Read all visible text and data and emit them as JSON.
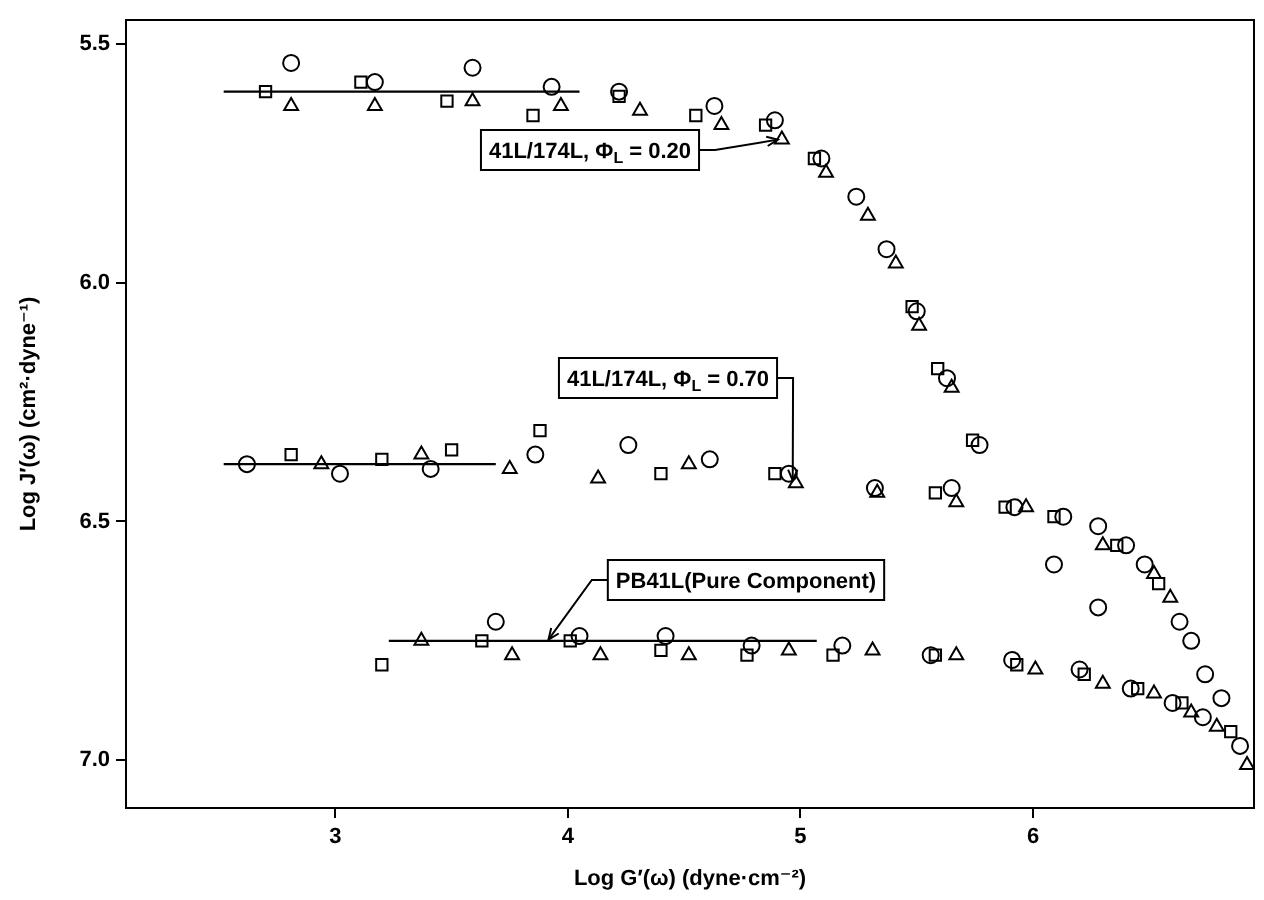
{
  "chart_data": {
    "type": "scatter",
    "xlabel": "Log G′(ω) (dyne·cm⁻²)",
    "ylabel": "Log J′(ω) (cm²·dyne⁻¹)",
    "xlim": [
      2.1,
      6.95
    ],
    "ylim": [
      7.1,
      5.45
    ],
    "xticks": [
      3,
      4,
      5,
      6
    ],
    "yticks": [
      5.5,
      {
        "value": 6,
        "label": "6.0"
      },
      6.5,
      {
        "value": 7,
        "label": "7.0"
      }
    ],
    "grid": false,
    "legend": false,
    "series": [
      {
        "type": "scatter",
        "marker": "circle",
        "color": "#000000",
        "x": [
          2.81,
          3.17,
          3.59,
          3.93,
          4.22,
          4.63,
          4.89,
          5.09,
          5.24,
          5.37,
          5.5,
          5.63,
          5.77,
          2.62,
          3.02,
          3.41,
          3.86,
          4.26,
          4.61,
          4.95,
          5.32,
          5.65,
          5.92,
          6.13,
          6.09,
          6.28,
          6.28,
          6.4,
          6.48,
          6.63,
          6.68,
          6.74,
          6.81,
          3.69,
          4.05,
          4.42,
          4.79,
          5.18,
          5.56,
          5.91,
          6.2,
          6.42,
          6.6,
          6.73,
          6.89
        ],
        "values": [
          5.54,
          5.58,
          5.55,
          5.59,
          5.6,
          5.63,
          5.66,
          5.74,
          5.82,
          5.93,
          6.06,
          6.2,
          6.34,
          6.38,
          6.4,
          6.39,
          6.36,
          6.34,
          6.37,
          6.4,
          6.43,
          6.43,
          6.47,
          6.49,
          6.59,
          6.51,
          6.68,
          6.55,
          6.59,
          6.71,
          6.75,
          6.82,
          6.87,
          6.71,
          6.74,
          6.74,
          6.76,
          6.76,
          6.78,
          6.79,
          6.81,
          6.85,
          6.88,
          6.91,
          6.97
        ]
      },
      {
        "type": "scatter",
        "marker": "square",
        "color": "#000000",
        "x": [
          2.7,
          3.11,
          3.48,
          3.85,
          4.22,
          4.55,
          4.85,
          5.06,
          5.48,
          5.59,
          5.74,
          2.81,
          3.2,
          3.5,
          3.88,
          4.4,
          4.89,
          5.58,
          5.88,
          6.09,
          6.36,
          6.54,
          3.2,
          3.63,
          4.01,
          4.4,
          4.77,
          5.14,
          5.58,
          5.93,
          6.22,
          6.45,
          6.64,
          6.85
        ],
        "values": [
          5.6,
          5.58,
          5.62,
          5.65,
          5.61,
          5.65,
          5.67,
          5.74,
          6.05,
          6.18,
          6.33,
          6.36,
          6.37,
          6.35,
          6.31,
          6.4,
          6.4,
          6.44,
          6.47,
          6.49,
          6.55,
          6.63,
          6.8,
          6.75,
          6.75,
          6.77,
          6.78,
          6.78,
          6.78,
          6.8,
          6.82,
          6.85,
          6.88,
          6.94
        ]
      },
      {
        "type": "scatter",
        "marker": "triangle",
        "color": "#000000",
        "x": [
          2.81,
          3.17,
          3.59,
          3.97,
          4.31,
          4.66,
          4.92,
          5.11,
          5.29,
          5.41,
          5.51,
          5.65,
          2.94,
          3.37,
          3.75,
          4.13,
          4.52,
          4.98,
          5.33,
          5.67,
          5.97,
          6.3,
          6.52,
          6.59,
          3.37,
          3.76,
          4.14,
          4.52,
          4.95,
          5.31,
          5.67,
          6.01,
          6.3,
          6.52,
          6.68,
          6.79,
          6.92
        ],
        "values": [
          5.63,
          5.63,
          5.62,
          5.63,
          5.64,
          5.67,
          5.7,
          5.77,
          5.86,
          5.96,
          6.09,
          6.22,
          6.38,
          6.36,
          6.39,
          6.41,
          6.38,
          6.42,
          6.44,
          6.46,
          6.47,
          6.55,
          6.61,
          6.66,
          6.75,
          6.78,
          6.78,
          6.78,
          6.77,
          6.77,
          6.78,
          6.81,
          6.84,
          6.86,
          6.9,
          6.93,
          7.01
        ]
      },
      {
        "type": "line",
        "marker": "none",
        "line_style": "solid",
        "color": "#000000",
        "x": [
          2.52,
          4.05
        ],
        "values": [
          5.6,
          5.6
        ]
      },
      {
        "type": "line",
        "marker": "none",
        "line_style": "solid",
        "color": "#000000",
        "x": [
          2.52,
          3.69
        ],
        "values": [
          6.38,
          6.38
        ]
      },
      {
        "type": "line",
        "marker": "none",
        "line_style": "solid",
        "color": "#000000",
        "x": [
          3.23,
          5.07
        ],
        "values": [
          6.75,
          6.75
        ]
      }
    ],
    "annotations": [
      {
        "text": "41L/174L, Φ$_{L}$ = 0.20",
        "x": 4.92,
        "y": 5.7
      },
      {
        "text": "41L/174L, Φ$_{L}$ = 0.70",
        "x": 4.98,
        "y": 6.42
      },
      {
        "text": "PB41L(Pure Component)",
        "x": 3.9,
        "y": 6.75
      }
    ]
  }
}
